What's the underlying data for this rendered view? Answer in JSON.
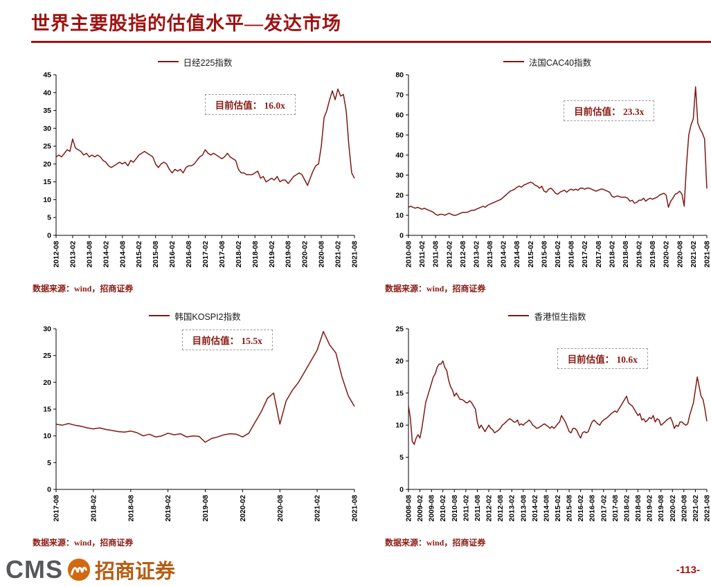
{
  "page": {
    "title": "世界主要股指的估值水平—发达市场",
    "source_note": "数据来源：wind，招商证券",
    "footer": {
      "cms": "CMS",
      "brand": "招商证券",
      "page_number": "-113-"
    },
    "colors": {
      "title_red": "#9E1312",
      "line_maroon": "#7E1711",
      "source_red": "#8B1A14",
      "logo_orange": "#D2690F"
    }
  },
  "chart_data": [
    {
      "type": "line",
      "title": "日经225指数",
      "annotation": "目前估值：  16.0x",
      "current_valuation": "16.0x",
      "x_start": "2012-08",
      "x_step_months": 1,
      "x_tick_every": 6,
      "x_first_label": "2012-08",
      "x_last_label": "2021-08",
      "ylim": [
        0,
        45
      ],
      "y_ticks": [
        0,
        5,
        10,
        15,
        20,
        25,
        30,
        35,
        40,
        45
      ],
      "values": [
        22,
        22.5,
        22,
        23,
        24,
        23.5,
        27,
        24.5,
        24,
        23.5,
        22.5,
        23,
        22,
        22.5,
        22,
        22.5,
        22,
        21,
        20.5,
        19.5,
        19,
        19.5,
        20,
        20.5,
        20,
        20.5,
        19.5,
        21,
        20.5,
        21.5,
        22.5,
        23,
        23.5,
        23,
        22.5,
        22,
        20,
        19,
        20,
        20.5,
        20,
        18.5,
        17.5,
        18.5,
        18,
        18.5,
        17.5,
        19,
        19.5,
        19.5,
        20,
        21,
        22,
        22.5,
        24,
        23,
        22.5,
        23,
        22.5,
        22,
        21.5,
        22,
        23,
        22,
        21.5,
        21,
        18.5,
        17.5,
        17.5,
        17,
        17,
        17,
        17.5,
        18,
        16,
        16.5,
        15,
        15.5,
        16,
        15.5,
        16.5,
        15,
        15.5,
        15.5,
        14.5,
        15.5,
        16.5,
        17,
        17.5,
        17,
        15.5,
        14,
        16,
        18,
        19.5,
        20,
        25,
        33,
        35,
        38,
        40.5,
        38,
        41,
        39,
        39.5,
        35,
        25,
        17.5,
        16
      ]
    },
    {
      "type": "line",
      "title": "法国CAC40指数",
      "annotation": "目前估值：  23.3x",
      "current_valuation": "23.3x",
      "x_start": "2010-08",
      "x_step_months": 1,
      "x_tick_every": 6,
      "x_first_label": "2010-08",
      "x_last_label": "2021-08",
      "ylim": [
        0,
        80
      ],
      "y_ticks": [
        0,
        10,
        20,
        30,
        40,
        50,
        60,
        70,
        80
      ],
      "values": [
        14,
        14.5,
        14,
        13.5,
        14,
        13.5,
        13,
        13.5,
        13,
        12.5,
        12,
        11.5,
        10.5,
        10,
        10.5,
        10.5,
        10,
        10.5,
        11,
        10.5,
        10,
        10,
        10.5,
        11,
        11.5,
        11.5,
        11.5,
        12,
        12.5,
        12.5,
        13,
        13.5,
        14,
        14.5,
        14,
        15,
        15.5,
        16,
        16.5,
        17,
        17.5,
        18,
        19,
        20,
        21,
        22,
        22.5,
        23,
        24,
        24.5,
        24,
        25,
        25.5,
        26,
        26.5,
        26,
        25,
        24.5,
        23.5,
        24.5,
        22,
        21.5,
        23,
        23.5,
        22.5,
        21,
        20.5,
        21.5,
        22,
        22.5,
        21.5,
        22.5,
        23,
        22.5,
        23,
        22.5,
        23.5,
        23.5,
        23,
        23.5,
        23.5,
        23,
        22.5,
        22,
        22.5,
        23,
        23,
        22.5,
        22,
        21.5,
        19.5,
        19,
        19.5,
        19.5,
        19,
        19,
        19,
        18.5,
        17,
        17.5,
        16,
        16.5,
        17.5,
        17.5,
        18.5,
        17,
        18,
        18.5,
        18,
        18.5,
        19,
        20,
        20.5,
        21,
        20,
        14,
        17,
        18.5,
        20.5,
        21,
        22,
        20.5,
        14.5,
        35,
        50,
        55,
        58,
        74,
        56,
        53,
        51,
        48,
        23.3
      ]
    },
    {
      "type": "line",
      "title": "韩国KOSPI2指数",
      "annotation": "目前估值：  15.5x",
      "current_valuation": "15.5x",
      "x_start": "2017-08",
      "x_step_months": 1,
      "x_tick_every": 6,
      "x_first_label": "2017-08",
      "x_last_label": "2021-08",
      "ylim": [
        0,
        30
      ],
      "y_ticks": [
        0,
        5,
        10,
        15,
        20,
        25,
        30
      ],
      "values": [
        12.2,
        12,
        12.3,
        12,
        11.8,
        11.5,
        11.3,
        11.5,
        11.2,
        11,
        10.8,
        10.7,
        10.9,
        10.6,
        10,
        10.3,
        9.8,
        10,
        10.5,
        10.2,
        10.4,
        9.8,
        10,
        9.9,
        8.8,
        9.5,
        9.8,
        10.2,
        10.4,
        10.3,
        9.8,
        10.5,
        12.5,
        14.5,
        17,
        18,
        12.2,
        16.5,
        18.5,
        20,
        22,
        24,
        26,
        29.5,
        27,
        25.5,
        21,
        17.5,
        15.5
      ]
    },
    {
      "type": "line",
      "title": "香港恒生指数",
      "annotation": "目前估值：  10.6x",
      "current_valuation": "10.6x",
      "x_start": "2008-08",
      "x_step_months": 1,
      "x_tick_every": 6,
      "x_first_label": "2008-08",
      "x_last_label": "2021-08",
      "ylim": [
        0,
        25
      ],
      "y_ticks": [
        0,
        5,
        10,
        15,
        20,
        25
      ],
      "values": [
        13,
        11,
        7.5,
        7,
        8,
        8.5,
        8,
        9.5,
        11.5,
        13.5,
        14.5,
        15.5,
        16.5,
        17.5,
        18,
        19,
        19.5,
        19.5,
        20,
        19,
        18.5,
        17,
        16,
        15.5,
        14.5,
        15,
        14.5,
        14,
        14,
        13.8,
        13.5,
        13.5,
        13.8,
        13.5,
        13,
        12.5,
        10.5,
        9.5,
        10,
        9.5,
        9,
        9.5,
        10,
        9.5,
        9.3,
        8.8,
        9,
        9.2,
        9.5,
        10,
        10.2,
        10.5,
        10.8,
        11,
        10.8,
        10.5,
        10.5,
        10.8,
        10,
        10.2,
        10,
        10.3,
        10.5,
        10.8,
        10.5,
        10,
        9.8,
        9.5,
        9.6,
        9.8,
        10,
        10.2,
        10,
        9.8,
        9.5,
        9.8,
        9.5,
        9.8,
        10.2,
        10.5,
        11.5,
        11,
        10.5,
        9.8,
        9,
        8.8,
        9.5,
        9.5,
        9.2,
        8.5,
        8,
        8.8,
        9,
        8.8,
        9,
        9.8,
        10.5,
        10.8,
        10.5,
        10.2,
        10,
        10.5,
        10.8,
        11,
        11.2,
        11.5,
        11.8,
        12,
        12.2,
        12,
        12.5,
        13,
        13.5,
        14,
        14.5,
        13.5,
        13.2,
        13,
        12.5,
        12,
        11.5,
        11.8,
        10.8,
        11,
        10.5,
        10.8,
        11.2,
        11,
        11.5,
        10.5,
        11,
        10.8,
        10,
        10.2,
        10.5,
        10.8,
        11,
        11.2,
        10.5,
        9.5,
        10,
        9.8,
        10.5,
        10.5,
        10.2,
        10,
        10.2,
        11.5,
        12.5,
        13.5,
        15.5,
        17.5,
        16,
        14.5,
        14,
        12.5,
        10.6
      ]
    }
  ]
}
